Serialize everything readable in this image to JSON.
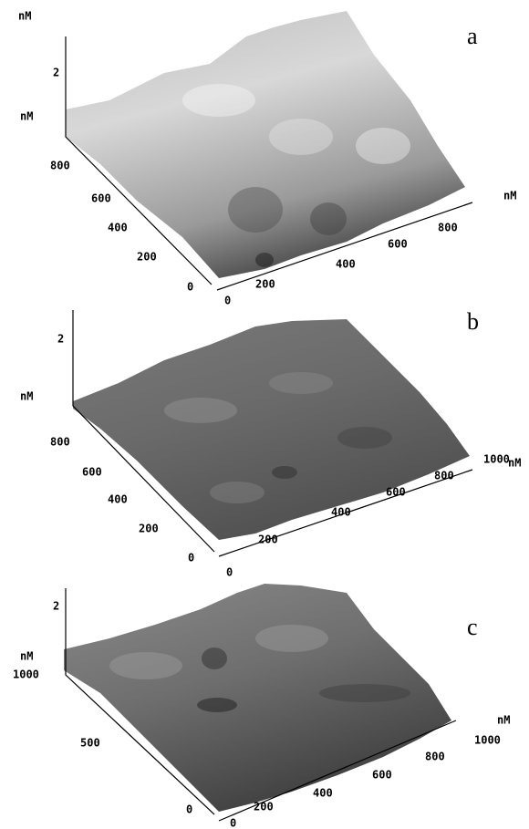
{
  "panels": [
    {
      "label": "a",
      "z_unit": "nM",
      "z_ticks": [
        "2"
      ],
      "y_unit": "nM",
      "y_ticks": [
        "800",
        "600",
        "400",
        "200",
        "0"
      ],
      "x_ticks": [
        "0",
        "200",
        "400",
        "600",
        "800"
      ],
      "x_unit": "nM"
    },
    {
      "label": "b",
      "z_ticks": [
        "2"
      ],
      "y_unit": "nM",
      "y_ticks": [
        "800",
        "600",
        "400",
        "200",
        "0"
      ],
      "x_ticks": [
        "0",
        "200",
        "400",
        "600",
        "800",
        "1000"
      ],
      "x_unit": "nM"
    },
    {
      "label": "c",
      "z_ticks": [
        "2"
      ],
      "y_unit": "nM",
      "y_ticks": [
        "1000",
        "500",
        "0"
      ],
      "x_ticks": [
        "0",
        "200",
        "400",
        "600",
        "800",
        "1000"
      ],
      "x_unit": "nM"
    }
  ]
}
